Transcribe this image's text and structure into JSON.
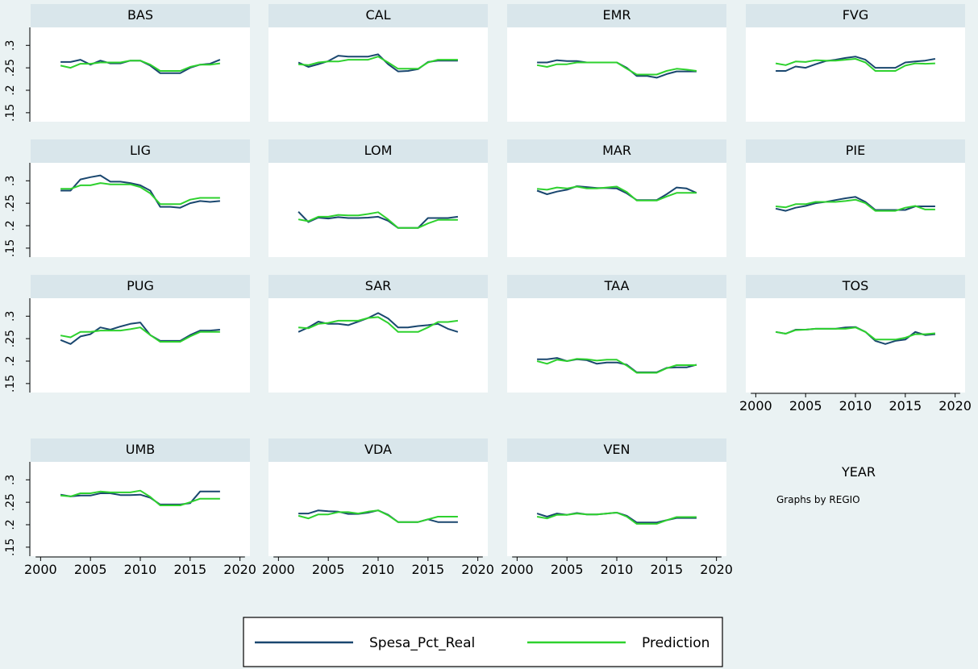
{
  "chart_data": {
    "type": "line",
    "xlabel": "YEAR",
    "note": "Graphs by REGIO",
    "xticks": [
      2000,
      2005,
      2010,
      2015,
      2020
    ],
    "yticks": [
      0.15,
      0.2,
      0.25,
      0.3
    ],
    "ytick_labels": [
      ".15",
      ".2",
      ".25",
      ".3"
    ],
    "xlim": [
      1999,
      2021
    ],
    "ylim": [
      0.13,
      0.34
    ],
    "x": [
      2002,
      2003,
      2004,
      2005,
      2006,
      2007,
      2008,
      2009,
      2010,
      2011,
      2012,
      2013,
      2014,
      2015,
      2016,
      2017,
      2018
    ],
    "legend": {
      "position": "bottom",
      "entries": [
        {
          "name": "Spesa_Pct_Real",
          "color": "#1a476f"
        },
        {
          "name": "Prediction",
          "color": "#2ed12e"
        }
      ]
    },
    "panels": [
      {
        "name": "BAS",
        "real": [
          0.263,
          0.263,
          0.268,
          0.257,
          0.266,
          0.26,
          0.26,
          0.266,
          0.266,
          0.255,
          0.238,
          0.238,
          0.238,
          0.25,
          0.257,
          0.259,
          0.268
        ],
        "pred": [
          0.255,
          0.25,
          0.259,
          0.259,
          0.262,
          0.262,
          0.262,
          0.266,
          0.266,
          0.257,
          0.243,
          0.243,
          0.243,
          0.252,
          0.257,
          0.257,
          0.26
        ]
      },
      {
        "name": "CAL",
        "real": [
          0.262,
          0.252,
          0.258,
          0.265,
          0.277,
          0.275,
          0.275,
          0.275,
          0.28,
          0.258,
          0.242,
          0.243,
          0.247,
          0.263,
          0.266,
          0.266,
          0.266
        ],
        "pred": [
          0.258,
          0.256,
          0.262,
          0.264,
          0.264,
          0.268,
          0.268,
          0.268,
          0.275,
          0.262,
          0.248,
          0.248,
          0.248,
          0.262,
          0.268,
          0.268,
          0.268
        ]
      },
      {
        "name": "EMR",
        "real": [
          0.262,
          0.262,
          0.267,
          0.265,
          0.265,
          0.262,
          0.262,
          0.262,
          0.262,
          0.25,
          0.232,
          0.232,
          0.228,
          0.236,
          0.242,
          0.242,
          0.242
        ],
        "pred": [
          0.256,
          0.252,
          0.258,
          0.258,
          0.262,
          0.262,
          0.262,
          0.262,
          0.262,
          0.248,
          0.235,
          0.235,
          0.235,
          0.243,
          0.248,
          0.246,
          0.243
        ]
      },
      {
        "name": "FVG",
        "real": [
          0.243,
          0.243,
          0.253,
          0.25,
          0.258,
          0.265,
          0.268,
          0.272,
          0.275,
          0.268,
          0.25,
          0.25,
          0.25,
          0.262,
          0.264,
          0.266,
          0.27
        ],
        "pred": [
          0.26,
          0.256,
          0.264,
          0.263,
          0.267,
          0.266,
          0.266,
          0.268,
          0.27,
          0.262,
          0.243,
          0.243,
          0.243,
          0.255,
          0.26,
          0.259,
          0.26
        ]
      },
      {
        "name": "LIG",
        "real": [
          0.278,
          0.278,
          0.303,
          0.308,
          0.312,
          0.298,
          0.298,
          0.295,
          0.29,
          0.278,
          0.242,
          0.242,
          0.24,
          0.25,
          0.255,
          0.253,
          0.255
        ],
        "pred": [
          0.282,
          0.282,
          0.29,
          0.29,
          0.295,
          0.292,
          0.292,
          0.292,
          0.286,
          0.272,
          0.248,
          0.248,
          0.248,
          0.258,
          0.262,
          0.262,
          0.262
        ]
      },
      {
        "name": "LOM",
        "real": [
          0.231,
          0.208,
          0.218,
          0.216,
          0.219,
          0.217,
          0.217,
          0.218,
          0.22,
          0.211,
          0.195,
          0.195,
          0.195,
          0.217,
          0.217,
          0.217,
          0.22
        ],
        "pred": [
          0.214,
          0.21,
          0.22,
          0.22,
          0.224,
          0.223,
          0.223,
          0.226,
          0.23,
          0.214,
          0.195,
          0.195,
          0.195,
          0.205,
          0.213,
          0.213,
          0.213
        ]
      },
      {
        "name": "MAR",
        "real": [
          0.278,
          0.27,
          0.276,
          0.28,
          0.288,
          0.286,
          0.284,
          0.284,
          0.283,
          0.272,
          0.257,
          0.257,
          0.257,
          0.27,
          0.285,
          0.283,
          0.273
        ],
        "pred": [
          0.282,
          0.28,
          0.285,
          0.283,
          0.287,
          0.283,
          0.283,
          0.285,
          0.287,
          0.275,
          0.256,
          0.256,
          0.256,
          0.265,
          0.273,
          0.273,
          0.273
        ]
      },
      {
        "name": "PIE",
        "real": [
          0.238,
          0.233,
          0.24,
          0.244,
          0.25,
          0.253,
          0.257,
          0.261,
          0.264,
          0.253,
          0.235,
          0.235,
          0.235,
          0.235,
          0.243,
          0.243,
          0.243
        ],
        "pred": [
          0.243,
          0.241,
          0.248,
          0.248,
          0.253,
          0.253,
          0.253,
          0.255,
          0.258,
          0.25,
          0.233,
          0.233,
          0.233,
          0.24,
          0.244,
          0.236,
          0.236
        ]
      },
      {
        "name": "PUG",
        "real": [
          0.247,
          0.238,
          0.255,
          0.26,
          0.275,
          0.27,
          0.277,
          0.283,
          0.286,
          0.258,
          0.245,
          0.245,
          0.245,
          0.258,
          0.268,
          0.268,
          0.27
        ],
        "pred": [
          0.257,
          0.253,
          0.265,
          0.265,
          0.268,
          0.268,
          0.268,
          0.271,
          0.275,
          0.258,
          0.243,
          0.243,
          0.243,
          0.255,
          0.265,
          0.265,
          0.265
        ]
      },
      {
        "name": "SAR",
        "real": [
          0.265,
          0.275,
          0.288,
          0.283,
          0.283,
          0.28,
          0.288,
          0.296,
          0.307,
          0.295,
          0.275,
          0.275,
          0.278,
          0.28,
          0.283,
          0.272,
          0.265
        ],
        "pred": [
          0.275,
          0.273,
          0.283,
          0.285,
          0.29,
          0.29,
          0.29,
          0.296,
          0.298,
          0.285,
          0.265,
          0.265,
          0.265,
          0.275,
          0.287,
          0.287,
          0.29
        ]
      },
      {
        "name": "TAA",
        "real": [
          0.204,
          0.204,
          0.207,
          0.2,
          0.204,
          0.202,
          0.194,
          0.197,
          0.197,
          0.192,
          0.175,
          0.175,
          0.175,
          0.185,
          0.186,
          0.186,
          0.192
        ],
        "pred": [
          0.2,
          0.194,
          0.203,
          0.2,
          0.205,
          0.204,
          0.201,
          0.203,
          0.203,
          0.19,
          0.174,
          0.174,
          0.174,
          0.184,
          0.191,
          0.191,
          0.191
        ]
      },
      {
        "name": "TOS",
        "real": [
          0.265,
          0.261,
          0.27,
          0.27,
          0.272,
          0.272,
          0.272,
          0.275,
          0.276,
          0.265,
          0.245,
          0.238,
          0.245,
          0.248,
          0.265,
          0.258,
          0.26
        ],
        "pred": [
          0.265,
          0.261,
          0.269,
          0.27,
          0.272,
          0.272,
          0.272,
          0.272,
          0.275,
          0.265,
          0.248,
          0.248,
          0.248,
          0.252,
          0.26,
          0.26,
          0.262
        ]
      },
      {
        "name": "UMB",
        "real": [
          0.267,
          0.263,
          0.265,
          0.265,
          0.27,
          0.27,
          0.266,
          0.266,
          0.267,
          0.26,
          0.245,
          0.245,
          0.245,
          0.248,
          0.274,
          0.274,
          0.274
        ],
        "pred": [
          0.265,
          0.263,
          0.27,
          0.27,
          0.274,
          0.272,
          0.272,
          0.272,
          0.276,
          0.262,
          0.243,
          0.243,
          0.243,
          0.25,
          0.258,
          0.258,
          0.258
        ]
      },
      {
        "name": "VDA",
        "real": [
          0.225,
          0.225,
          0.232,
          0.23,
          0.229,
          0.224,
          0.224,
          0.227,
          0.232,
          0.222,
          0.206,
          0.206,
          0.206,
          0.212,
          0.206,
          0.206,
          0.206
        ],
        "pred": [
          0.22,
          0.214,
          0.223,
          0.223,
          0.228,
          0.228,
          0.225,
          0.229,
          0.232,
          0.221,
          0.206,
          0.206,
          0.206,
          0.212,
          0.218,
          0.218,
          0.218
        ]
      },
      {
        "name": "VEN",
        "real": [
          0.225,
          0.218,
          0.225,
          0.222,
          0.226,
          0.223,
          0.223,
          0.225,
          0.227,
          0.22,
          0.205,
          0.205,
          0.205,
          0.21,
          0.215,
          0.215,
          0.215
        ],
        "pred": [
          0.218,
          0.214,
          0.222,
          0.222,
          0.225,
          0.223,
          0.223,
          0.225,
          0.227,
          0.218,
          0.202,
          0.202,
          0.202,
          0.21,
          0.217,
          0.217,
          0.217
        ]
      }
    ]
  }
}
